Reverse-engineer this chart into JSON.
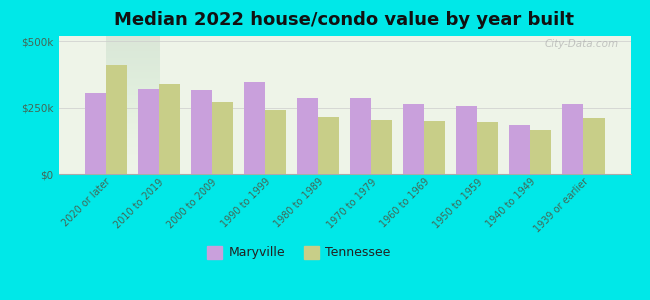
{
  "title": "Median 2022 house/condo value by year built",
  "categories": [
    "2020 or later",
    "2010 to 2019",
    "2000 to 2009",
    "1990 to 1999",
    "1980 to 1989",
    "1970 to 1979",
    "1960 to 1969",
    "1950 to 1959",
    "1940 to 1949",
    "1939 or earlier"
  ],
  "maryville": [
    305000,
    320000,
    315000,
    345000,
    285000,
    285000,
    265000,
    255000,
    185000,
    265000
  ],
  "tennessee": [
    410000,
    340000,
    270000,
    240000,
    215000,
    205000,
    200000,
    195000,
    165000,
    210000
  ],
  "maryville_color": "#c9a0dc",
  "tennessee_color": "#c8ce88",
  "background_color": "#00e8e8",
  "plot_bg_top": "#f5f8ee",
  "plot_bg_bottom": "#e8f0e0",
  "ylabel_ticks": [
    "$0",
    "$250k",
    "$500k"
  ],
  "ytick_vals": [
    0,
    250000,
    500000
  ],
  "ylim": [
    0,
    520000
  ],
  "bar_width": 0.4,
  "legend_labels": [
    "Maryville",
    "Tennessee"
  ],
  "title_fontsize": 13,
  "tick_fontsize": 7,
  "legend_fontsize": 9,
  "watermark": "City-Data.com"
}
